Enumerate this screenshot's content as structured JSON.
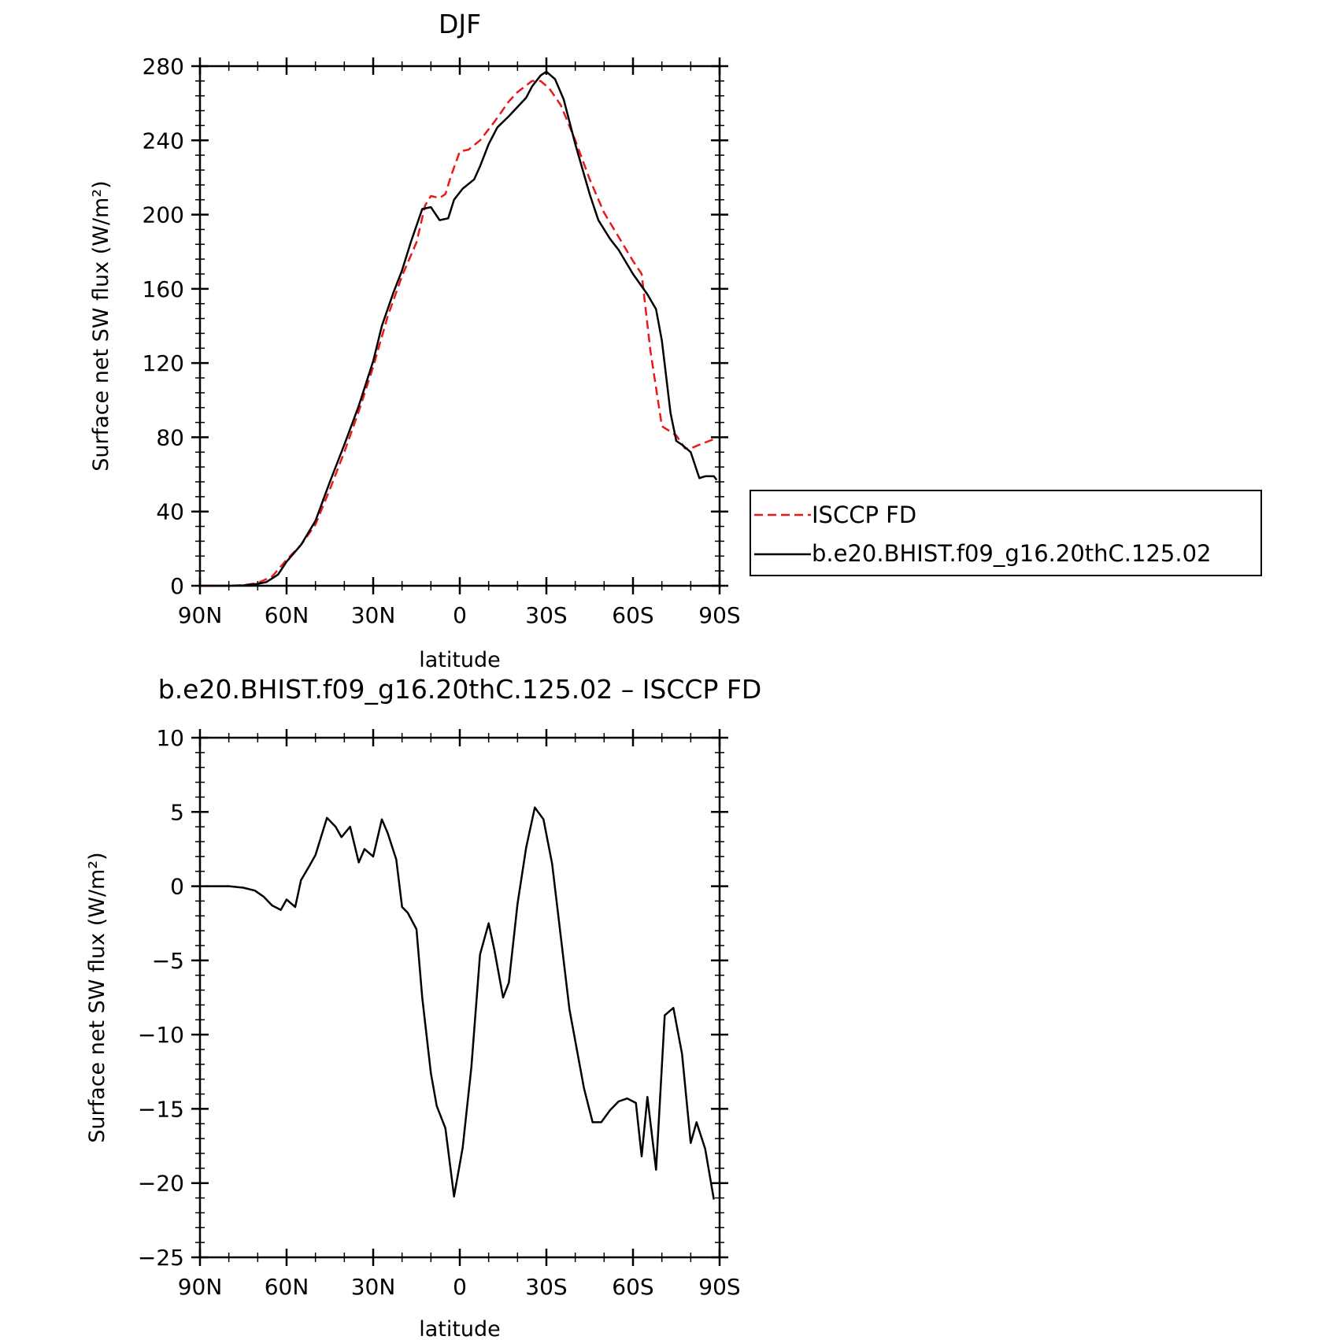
{
  "chart_data": [
    {
      "type": "line",
      "title": "DJF",
      "xlabel": "latitude",
      "ylabel": "Surface net SW flux (W/m²)",
      "xlim": [
        90,
        -90
      ],
      "ylim": [
        0,
        280
      ],
      "x_ticks": [
        90,
        60,
        30,
        0,
        -30,
        -60,
        -90
      ],
      "x_tick_labels": [
        "90N",
        "60N",
        "30N",
        "0",
        "30S",
        "60S",
        "90S"
      ],
      "y_ticks": [
        0,
        40,
        80,
        120,
        160,
        200,
        240,
        280
      ],
      "y_tick_labels": [
        "0",
        "40",
        "80",
        "120",
        "160",
        "200",
        "240",
        "280"
      ],
      "grid": false,
      "legend_position": "right",
      "series": [
        {
          "name": "ISCCP FD",
          "color": "#e8181b",
          "dash": "dashed",
          "points": [
            [
              88,
              0
            ],
            [
              80,
              0
            ],
            [
              75,
              0.3
            ],
            [
              70,
              1.5
            ],
            [
              65,
              5
            ],
            [
              60,
              14
            ],
            [
              55,
              22
            ],
            [
              50,
              33
            ],
            [
              45,
              52
            ],
            [
              40,
              72
            ],
            [
              35,
              94
            ],
            [
              30,
              118
            ],
            [
              25,
              145
            ],
            [
              20,
              167
            ],
            [
              15,
              185
            ],
            [
              12,
              205
            ],
            [
              10,
              210
            ],
            [
              7,
              209
            ],
            [
              5,
              211
            ],
            [
              3,
              221
            ],
            [
              0,
              234
            ],
            [
              -3,
              235
            ],
            [
              -7,
              240
            ],
            [
              -12,
              250
            ],
            [
              -17,
              261
            ],
            [
              -20,
              266
            ],
            [
              -25,
              272
            ],
            [
              -28,
              272
            ],
            [
              -31,
              268
            ],
            [
              -35,
              259
            ],
            [
              -40,
              240
            ],
            [
              -45,
              219
            ],
            [
              -50,
              201
            ],
            [
              -55,
              188
            ],
            [
              -60,
              175
            ],
            [
              -63,
              168
            ],
            [
              -66,
              127
            ],
            [
              -70,
              86
            ],
            [
              -75,
              81
            ],
            [
              -78,
              74
            ],
            [
              -80,
              74
            ],
            [
              -83,
              76
            ],
            [
              -88,
              79
            ]
          ]
        },
        {
          "name": "b.e20.BHIST.f09_g16.20thC.125.02",
          "color": "#000000",
          "dash": "solid",
          "points": [
            [
              88,
              0
            ],
            [
              80,
              0
            ],
            [
              75,
              0.2
            ],
            [
              70,
              1
            ],
            [
              67,
              2
            ],
            [
              63,
              6
            ],
            [
              60,
              13
            ],
            [
              55,
              22
            ],
            [
              50,
              35
            ],
            [
              45,
              56
            ],
            [
              40,
              76
            ],
            [
              35,
              97
            ],
            [
              30,
              121
            ],
            [
              27,
              140
            ],
            [
              23,
              158
            ],
            [
              20,
              170
            ],
            [
              17,
              185
            ],
            [
              13,
              203
            ],
            [
              10,
              204
            ],
            [
              7,
              197
            ],
            [
              4,
              198
            ],
            [
              2,
              208
            ],
            [
              -1,
              214
            ],
            [
              -5,
              219
            ],
            [
              -7,
              226
            ],
            [
              -10,
              238
            ],
            [
              -13,
              247
            ],
            [
              -17,
              253
            ],
            [
              -20,
              258
            ],
            [
              -23,
              263
            ],
            [
              -25,
              269
            ],
            [
              -28,
              275
            ],
            [
              -30,
              277
            ],
            [
              -33,
              273
            ],
            [
              -36,
              262
            ],
            [
              -40,
              238
            ],
            [
              -45,
              211
            ],
            [
              -48,
              197
            ],
            [
              -52,
              187
            ],
            [
              -55,
              181
            ],
            [
              -60,
              168
            ],
            [
              -65,
              157
            ],
            [
              -68,
              149
            ],
            [
              -70,
              132
            ],
            [
              -73,
              93
            ],
            [
              -75,
              78
            ],
            [
              -77,
              76
            ],
            [
              -80,
              72
            ],
            [
              -83,
              58
            ],
            [
              -85,
              59
            ],
            [
              -88,
              59
            ],
            [
              -89,
              57
            ]
          ]
        }
      ]
    },
    {
      "type": "line",
      "title": "b.e20.BHIST.f09_g16.20thC.125.02 – ISCCP FD",
      "xlabel": "latitude",
      "ylabel": "Surface net SW flux (W/m²)",
      "xlim": [
        90,
        -90
      ],
      "ylim": [
        -25,
        10
      ],
      "x_ticks": [
        90,
        60,
        30,
        0,
        -30,
        -60,
        -90
      ],
      "x_tick_labels": [
        "90N",
        "60N",
        "30N",
        "0",
        "30S",
        "60S",
        "90S"
      ],
      "y_ticks": [
        -25,
        -20,
        -15,
        -10,
        -5,
        0,
        5,
        10
      ],
      "y_tick_labels": [
        "−25",
        "−20",
        "−15",
        "−10",
        "−5",
        "0",
        "5",
        "10"
      ],
      "grid": false,
      "series": [
        {
          "color": "#000000",
          "dash": "solid",
          "points": [
            [
              88,
              0
            ],
            [
              80,
              0
            ],
            [
              75,
              -0.1
            ],
            [
              71,
              -0.3
            ],
            [
              68,
              -0.7
            ],
            [
              65,
              -1.3
            ],
            [
              62,
              -1.6
            ],
            [
              60,
              -0.9
            ],
            [
              57,
              -1.4
            ],
            [
              55,
              0.4
            ],
            [
              52,
              1.4
            ],
            [
              50,
              2.1
            ],
            [
              46,
              4.6
            ],
            [
              43,
              4
            ],
            [
              41,
              3.3
            ],
            [
              38,
              4
            ],
            [
              35,
              1.6
            ],
            [
              33,
              2.5
            ],
            [
              30,
              2
            ],
            [
              27,
              4.5
            ],
            [
              25,
              3.6
            ],
            [
              22,
              1.8
            ],
            [
              20,
              -1.4
            ],
            [
              18,
              -1.8
            ],
            [
              15,
              -2.9
            ],
            [
              13,
              -7.5
            ],
            [
              10,
              -12.6
            ],
            [
              8,
              -14.8
            ],
            [
              5,
              -16.3
            ],
            [
              2,
              -20.9
            ],
            [
              -1,
              -17.6
            ],
            [
              -4,
              -12.2
            ],
            [
              -7,
              -4.6
            ],
            [
              -10,
              -2.5
            ],
            [
              -12,
              -4.3
            ],
            [
              -15,
              -7.5
            ],
            [
              -17,
              -6.5
            ],
            [
              -20,
              -1.2
            ],
            [
              -23,
              2.6
            ],
            [
              -26,
              5.3
            ],
            [
              -29,
              4.5
            ],
            [
              -32,
              1.5
            ],
            [
              -35,
              -3.4
            ],
            [
              -38,
              -8.3
            ],
            [
              -43,
              -13.6
            ],
            [
              -46,
              -15.9
            ],
            [
              -49,
              -15.9
            ],
            [
              -52,
              -15.1
            ],
            [
              -55,
              -14.5
            ],
            [
              -58,
              -14.3
            ],
            [
              -61,
              -14.6
            ],
            [
              -63,
              -18.2
            ],
            [
              -65,
              -14.2
            ],
            [
              -68,
              -19.1
            ],
            [
              -71,
              -8.7
            ],
            [
              -74,
              -8.2
            ],
            [
              -77,
              -11.3
            ],
            [
              -80,
              -17.3
            ],
            [
              -82,
              -15.9
            ],
            [
              -85,
              -17.7
            ],
            [
              -88,
              -21.1
            ]
          ]
        }
      ]
    }
  ]
}
